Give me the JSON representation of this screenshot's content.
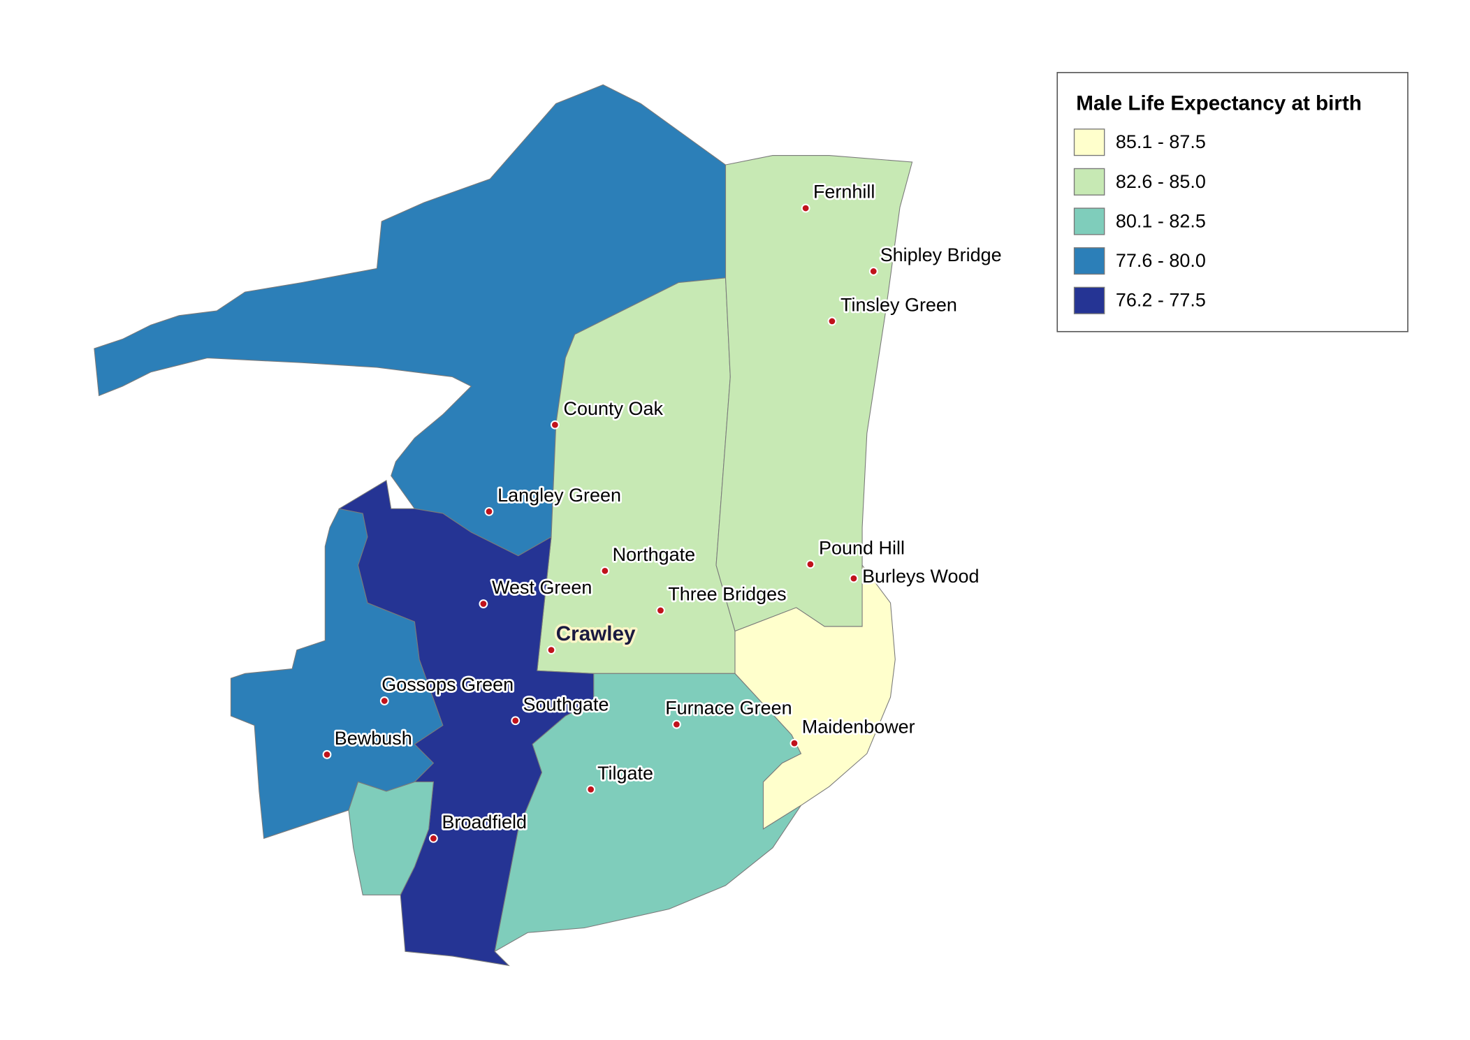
{
  "legend": {
    "title": "Male Life Expectancy at birth",
    "classes": [
      {
        "label": "85.1 - 87.5",
        "color": "#ffffcc"
      },
      {
        "label": "82.6 - 85.0",
        "color": "#c7e9b4"
      },
      {
        "label": "80.1 - 82.5",
        "color": "#7fcdbb"
      },
      {
        "label": "77.6 - 80.0",
        "color": "#2c7fb8"
      },
      {
        "label": "76.2 - 77.5",
        "color": "#253494"
      }
    ]
  },
  "places": [
    {
      "name": "Fernhill"
    },
    {
      "name": "Shipley Bridge"
    },
    {
      "name": "Tinsley Green"
    },
    {
      "name": "County Oak"
    },
    {
      "name": "Langley Green"
    },
    {
      "name": "Northgate"
    },
    {
      "name": "Pound Hill"
    },
    {
      "name": "Burleys Wood"
    },
    {
      "name": "West Green"
    },
    {
      "name": "Three Bridges"
    },
    {
      "name": "Crawley"
    },
    {
      "name": "Gossops Green"
    },
    {
      "name": "Southgate"
    },
    {
      "name": "Furnace Green"
    },
    {
      "name": "Maidenbower"
    },
    {
      "name": "Bewbush"
    },
    {
      "name": "Tilgate"
    },
    {
      "name": "Broadfield"
    }
  ]
}
